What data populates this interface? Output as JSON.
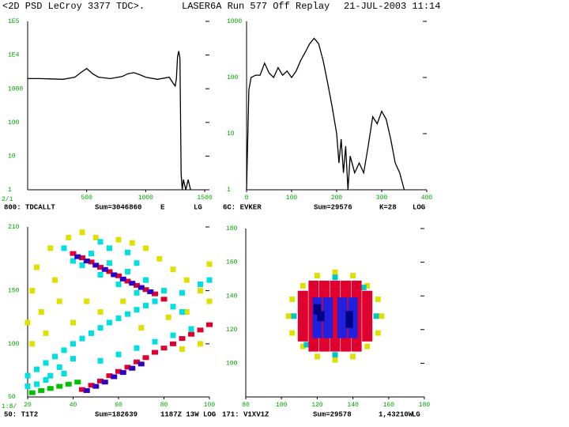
{
  "header": {
    "left": "<2D PSD LeCroy 3377 TDC>.",
    "middle": "LASER6A Run 577 Off Replay",
    "right": "21-JUL-2003 11:14"
  },
  "chart_data": [
    {
      "type": "line",
      "log_y": true,
      "color": "#000000",
      "corner_label": "2/1",
      "footer": [
        "800: TDCALLT",
        "Sum=3046860",
        "E",
        "LG"
      ],
      "xlim": [
        0,
        1540
      ],
      "xticks": [
        500,
        1000,
        1500
      ],
      "ylim": [
        1,
        100000
      ],
      "yticks": [
        {
          "value": 100000,
          "label": "1E5"
        },
        {
          "value": 10000,
          "label": "1E4"
        },
        1000,
        100,
        10,
        1
      ],
      "x": [
        0,
        50,
        100,
        200,
        300,
        400,
        450,
        500,
        550,
        600,
        700,
        800,
        850,
        900,
        950,
        1000,
        1100,
        1200,
        1230,
        1250,
        1260,
        1270,
        1280,
        1290,
        1295,
        1300,
        1310,
        1320,
        1340,
        1360,
        1380
      ],
      "values": [
        2000,
        2000,
        2000,
        1950,
        1900,
        2200,
        3000,
        4000,
        2800,
        2200,
        2000,
        2300,
        2800,
        3000,
        2600,
        2200,
        1900,
        2200,
        1500,
        1200,
        2000,
        9000,
        13000,
        8000,
        200,
        3,
        1,
        2,
        1,
        2,
        1
      ]
    },
    {
      "type": "line",
      "log_y": true,
      "color": "#000000",
      "footer": [
        "6C: EVKER",
        "Sum=29576",
        "K=28",
        "LOG"
      ],
      "xlim": [
        0,
        400
      ],
      "xticks": [
        0,
        100,
        200,
        300,
        400
      ],
      "ylim": [
        1,
        1000
      ],
      "yticks": [
        1000,
        100,
        10,
        1
      ],
      "x": [
        0,
        5,
        10,
        20,
        30,
        40,
        50,
        60,
        70,
        80,
        90,
        100,
        110,
        120,
        130,
        140,
        150,
        160,
        170,
        180,
        190,
        200,
        205,
        210,
        215,
        220,
        225,
        230,
        240,
        250,
        260,
        270,
        280,
        290,
        300,
        310,
        320,
        330,
        340,
        350
      ],
      "values": [
        1,
        60,
        100,
        110,
        110,
        180,
        120,
        100,
        150,
        110,
        130,
        100,
        130,
        200,
        280,
        400,
        500,
        400,
        200,
        80,
        30,
        10,
        3,
        8,
        2,
        6,
        1,
        4,
        2,
        3,
        2,
        6,
        20,
        15,
        25,
        18,
        8,
        3,
        2,
        1
      ]
    },
    {
      "type": "scatter",
      "corner_label": "1:8/",
      "footer": [
        "50: T1T2",
        "Sum=182639",
        "1187Z 13W LOG"
      ],
      "xlim": [
        20,
        100
      ],
      "xticks": [
        20,
        40,
        60,
        80,
        100
      ],
      "ylim": [
        50,
        210
      ],
      "yticks": [
        50,
        100,
        150,
        210
      ],
      "series": [
        {
          "color": "#e0e000",
          "x": [
            22,
            24,
            30,
            26,
            32,
            38,
            44,
            50,
            60,
            66,
            72,
            78,
            84,
            90,
            96,
            100,
            90,
            82,
            70,
            96,
            88,
            20,
            28,
            34,
            40,
            22,
            46,
            52,
            62,
            100
          ],
          "y": [
            150,
            172,
            190,
            130,
            160,
            200,
            205,
            200,
            198,
            195,
            190,
            180,
            170,
            160,
            150,
            140,
            130,
            125,
            115,
            100,
            95,
            120,
            110,
            140,
            120,
            100,
            140,
            130,
            140,
            175
          ]
        },
        {
          "color": "#00e0e0",
          "x": [
            36,
            40,
            44,
            48,
            52,
            56,
            60,
            64,
            68,
            72,
            76,
            80,
            84,
            88,
            20,
            24,
            28,
            32,
            36,
            40,
            44,
            48,
            52,
            56,
            60,
            64,
            68,
            72,
            20,
            28,
            36,
            52,
            60,
            68,
            76,
            84,
            92,
            88,
            96,
            100,
            24,
            30,
            34,
            40,
            56,
            64,
            68,
            52
          ],
          "y": [
            190,
            178,
            174,
            185,
            165,
            176,
            156,
            168,
            148,
            160,
            140,
            150,
            135,
            130,
            70,
            76,
            82,
            88,
            94,
            100,
            105,
            110,
            115,
            120,
            124,
            128,
            132,
            136,
            60,
            66,
            72,
            84,
            90,
            96,
            102,
            108,
            114,
            148,
            156,
            160,
            62,
            70,
            78,
            86,
            190,
            186,
            176,
            196
          ]
        },
        {
          "color": "#00c000",
          "x": [
            22,
            26,
            30,
            34,
            38,
            42
          ],
          "y": [
            54,
            56,
            58,
            60,
            62,
            64
          ]
        },
        {
          "color": "#e00030",
          "x": [
            40,
            44,
            48,
            52,
            56,
            60,
            64,
            68,
            72,
            76,
            80,
            44,
            48,
            52,
            56,
            60,
            64,
            68,
            72,
            76,
            80,
            84,
            88,
            92,
            96,
            100
          ],
          "y": [
            185,
            181,
            177,
            172,
            168,
            164,
            159,
            155,
            151,
            147,
            142,
            57,
            61,
            65,
            70,
            74,
            78,
            83,
            87,
            92,
            96,
            100,
            105,
            109,
            113,
            118
          ]
        },
        {
          "color": "#3000c0",
          "x": [
            42,
            46,
            50,
            54,
            58,
            62,
            66,
            70,
            74,
            46,
            50,
            54,
            58,
            62,
            66,
            70
          ],
          "y": [
            182,
            178,
            174,
            170,
            165,
            161,
            157,
            153,
            149,
            56,
            60,
            64,
            69,
            73,
            77,
            81
          ]
        }
      ]
    },
    {
      "type": "scatter",
      "footer": [
        "171: V1XV1Z",
        "Sum=29578",
        "1,43210W",
        "LG"
      ],
      "xlim": [
        80,
        180
      ],
      "xticks": [
        80,
        100,
        120,
        140,
        160,
        180
      ],
      "ylim": [
        80,
        180
      ],
      "yticks": [
        100,
        120,
        140,
        160,
        180
      ],
      "series": [
        {
          "color": "#e0e000",
          "x": [
            156,
            154,
            148,
            140,
            130,
            120,
            112,
            106,
            104,
            106,
            112,
            120,
            130,
            140,
            148,
            154
          ],
          "y": [
            128,
            138,
            146,
            152,
            154,
            152,
            146,
            138,
            128,
            118,
            110,
            104,
            102,
            104,
            110,
            118
          ]
        },
        {
          "color": "#00c8c8",
          "x": [
            153,
            107,
            130,
            130,
            146,
            114
          ],
          "y": [
            128,
            128,
            151,
            105,
            145,
            111
          ]
        },
        {
          "color": "#e00030",
          "x": [
            118,
            124,
            130,
            136,
            142,
            112,
            118,
            124,
            130,
            136,
            142,
            148,
            112,
            118,
            124,
            130,
            136,
            142,
            148,
            112,
            118,
            124,
            130,
            136,
            142,
            148,
            112,
            118,
            124,
            130,
            136,
            142,
            148,
            112,
            118,
            124,
            130,
            136,
            142,
            148,
            118,
            124,
            130,
            136,
            142
          ],
          "y": [
            110,
            110,
            110,
            110,
            110,
            116,
            116,
            116,
            116,
            116,
            116,
            116,
            122,
            122,
            122,
            122,
            122,
            122,
            122,
            128,
            128,
            128,
            128,
            128,
            128,
            128,
            134,
            134,
            134,
            134,
            134,
            134,
            134,
            140,
            140,
            140,
            140,
            140,
            140,
            140,
            146,
            146,
            146,
            146,
            146
          ]
        },
        {
          "color": "#2020e0",
          "x": [
            120,
            126,
            134,
            140,
            120,
            126,
            134,
            140,
            120,
            126,
            134,
            140,
            120,
            126,
            134,
            140
          ],
          "y": [
            118,
            118,
            118,
            118,
            124,
            124,
            124,
            124,
            130,
            130,
            130,
            130,
            136,
            136,
            136,
            136
          ]
        },
        {
          "color": "#000080",
          "x": [
            122,
            138,
            120,
            138
          ],
          "y": [
            128,
            128,
            132,
            124
          ]
        }
      ]
    }
  ]
}
